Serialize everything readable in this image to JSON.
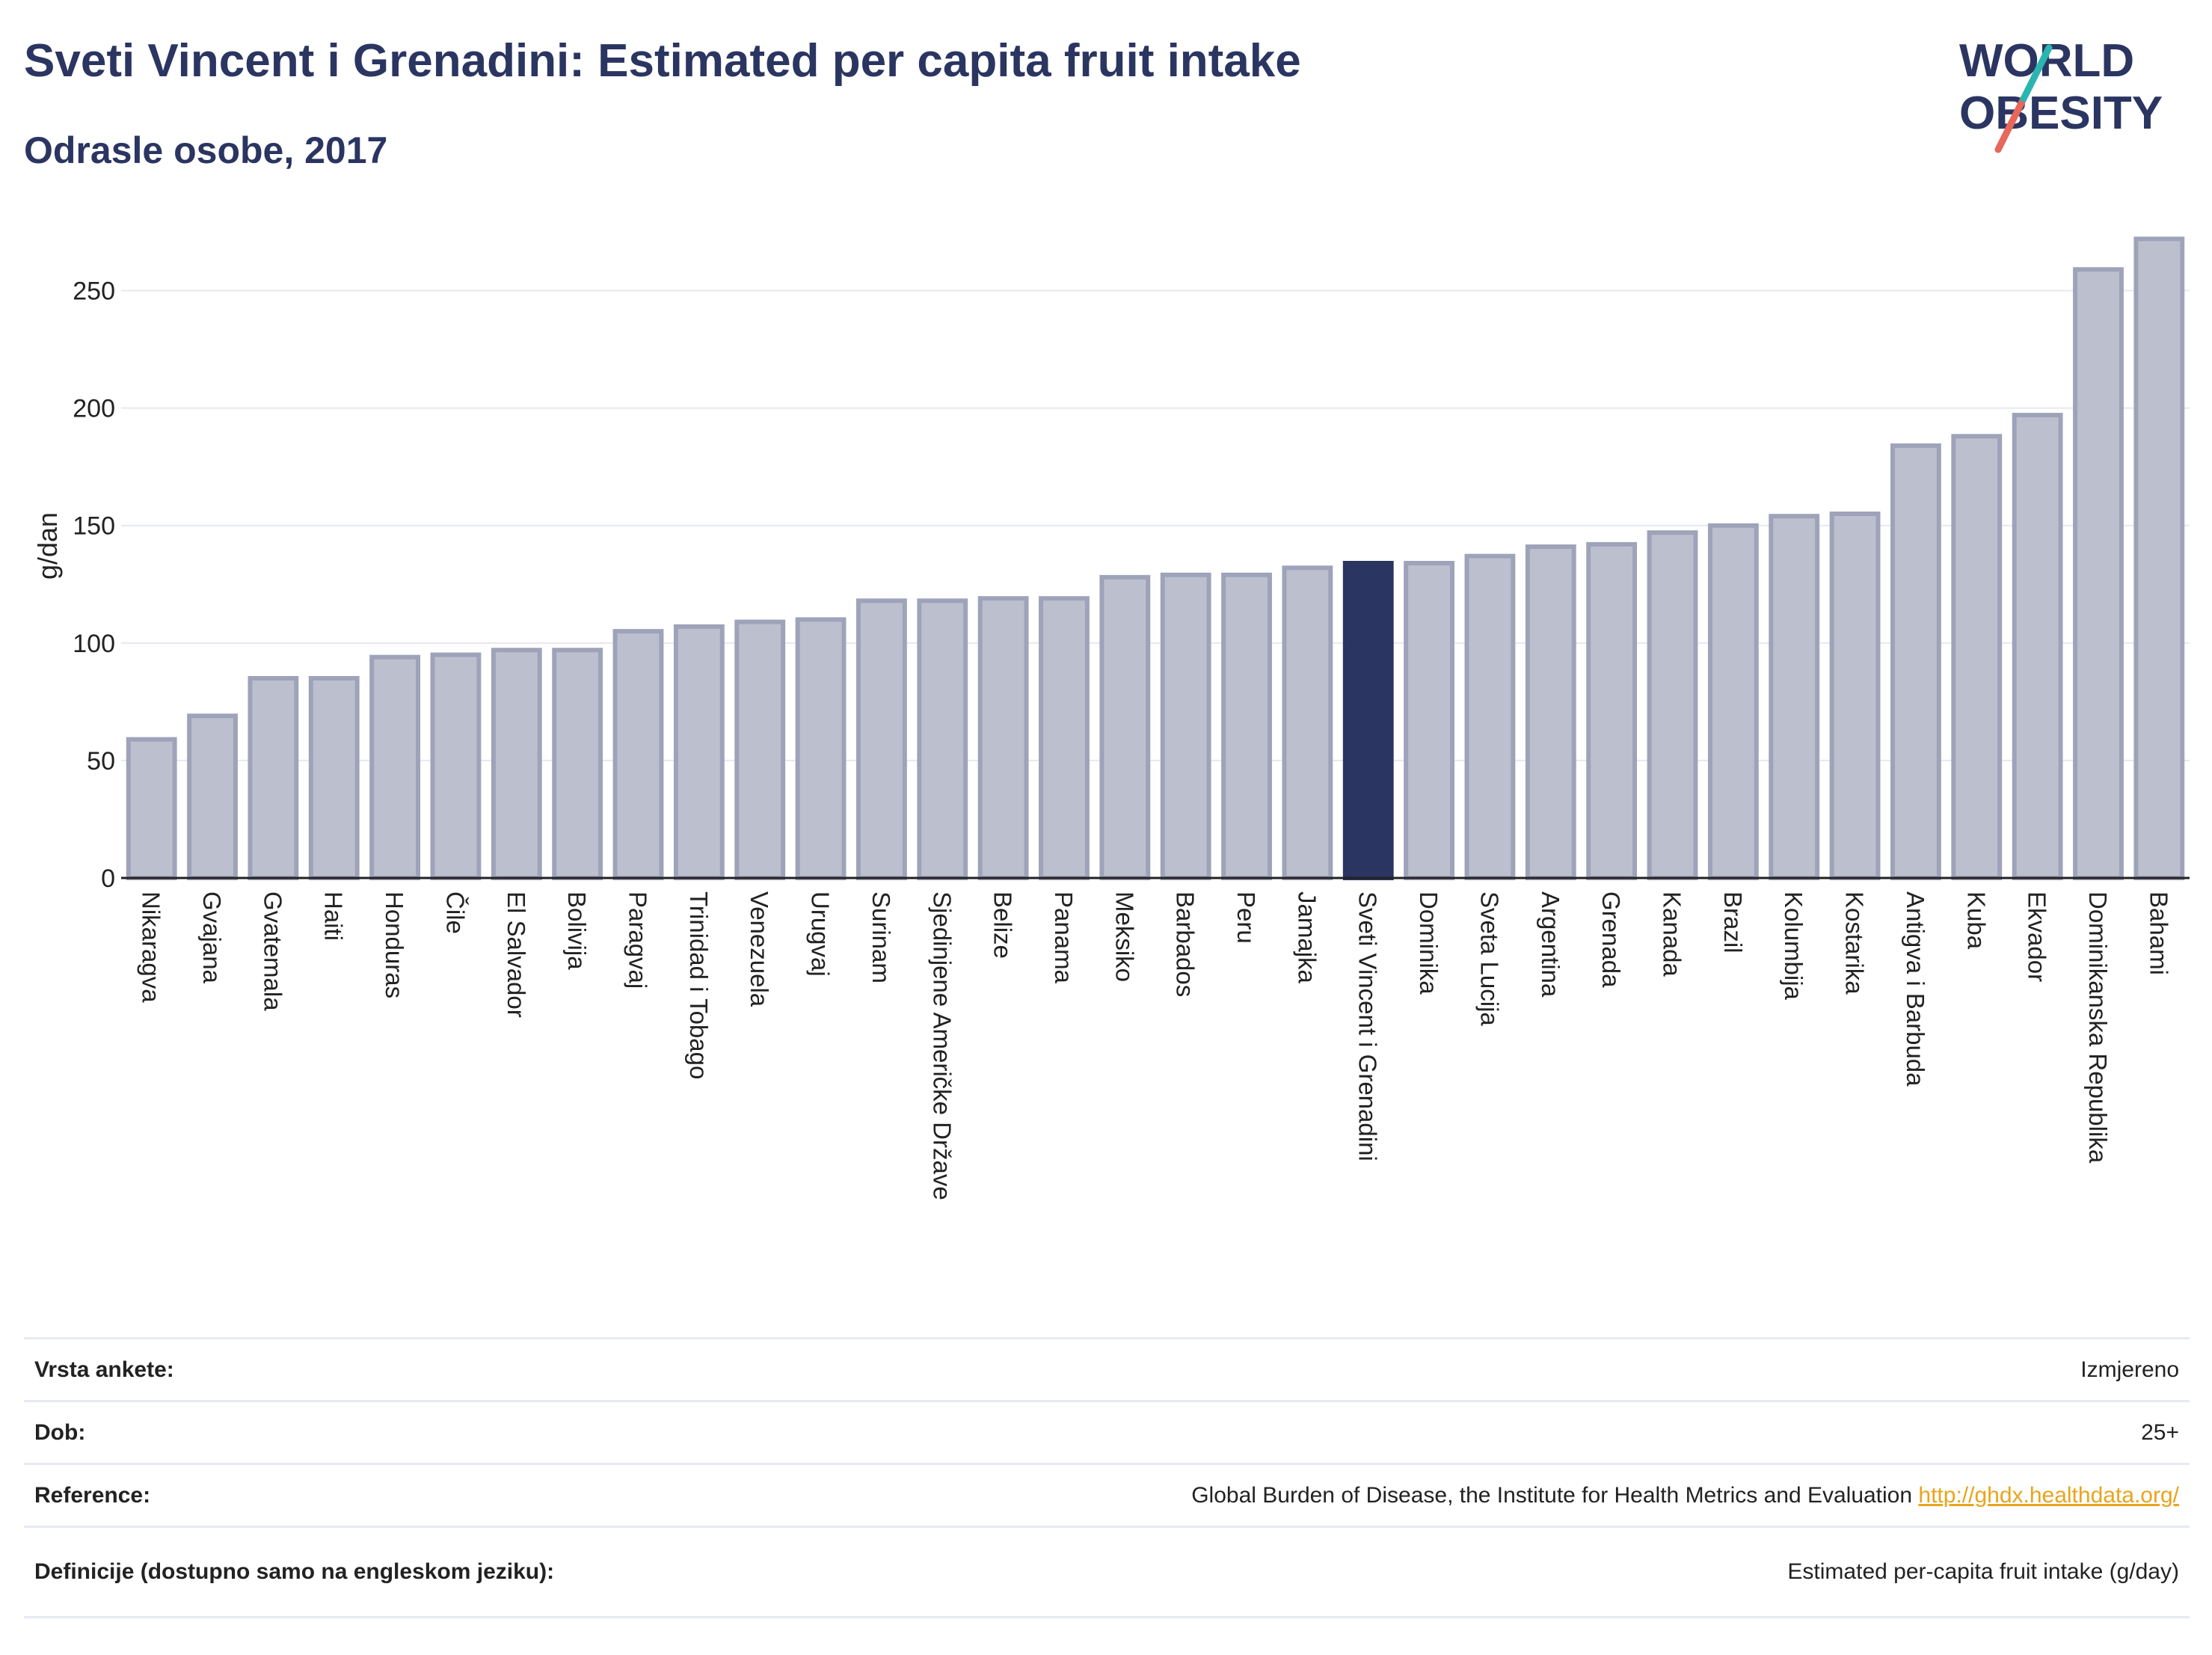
{
  "header": {
    "title": "Sveti Vincent i Grenadini: Estimated per capita fruit intake",
    "subtitle": "Odrasle osobe, 2017"
  },
  "logo": {
    "line1": "WORLD",
    "line2": "OBESITY",
    "accent_teal": "#2bb5b0",
    "accent_red": "#e8665a"
  },
  "colors": {
    "highlight": "#2b3561",
    "bar_fill": "#bcc0ce",
    "bar_stroke": "#9ea3ba"
  },
  "chart_data": {
    "type": "bar",
    "ylabel": "g/dan",
    "ylim": [
      0,
      275
    ],
    "yticks": [
      0,
      50,
      100,
      150,
      200,
      250
    ],
    "grid": true,
    "highlight": "Sveti Vincent i Grenadini",
    "categories": [
      "Nikaragva",
      "Gvajana",
      "Gvatemala",
      "Haiti",
      "Honduras",
      "Čile",
      "El Salvador",
      "Bolivija",
      "Paragvaj",
      "Trinidad i Tobago",
      "Venezuela",
      "Urugvaj",
      "Surinam",
      "Sjedinjene Američke Države",
      "Belize",
      "Panama",
      "Meksiko",
      "Barbados",
      "Peru",
      "Jamajka",
      "Sveti Vincent i Grenadini",
      "Dominika",
      "Sveta Lucija",
      "Argentina",
      "Grenada",
      "Kanada",
      "Brazil",
      "Kolumbija",
      "Kostarika",
      "Antigva i Barbuda",
      "Kuba",
      "Ekvador",
      "Dominikanska Republika",
      "Bahami"
    ],
    "values": [
      59,
      69,
      85,
      85,
      94,
      95,
      97,
      97,
      105,
      107,
      109,
      110,
      118,
      118,
      119,
      119,
      128,
      129,
      129,
      132,
      134,
      134,
      137,
      141,
      142,
      147,
      150,
      154,
      155,
      184,
      188,
      197,
      259,
      272
    ]
  },
  "info": {
    "rows": [
      {
        "label": "Vrsta ankete:",
        "value": "Izmjereno",
        "link": ""
      },
      {
        "label": "Dob:",
        "value": "25+",
        "link": ""
      },
      {
        "label": "Reference:",
        "value": "Global Burden of Disease, the Institute for Health Metrics and Evaluation",
        "link": "http://ghdx.healthdata.org/"
      },
      {
        "label": "Definicije (dostupno samo na engleskom jeziku):",
        "value": "Estimated per-capita fruit intake (g/day)",
        "link": ""
      }
    ]
  }
}
